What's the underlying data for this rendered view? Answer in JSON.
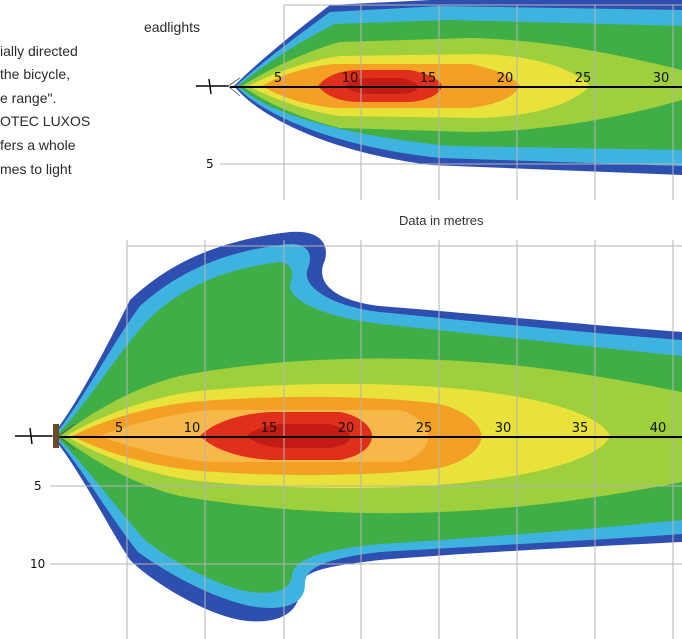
{
  "intro_lines": [
    "eadlights",
    "ially directed",
    "the bicycle,",
    "e range\".",
    "OTEC LUXOS",
    "fers a whole",
    "mes to light"
  ],
  "caption": "Data in metres",
  "top_beam": {
    "axis_ticks": [
      "5",
      "10",
      "15",
      "20",
      "25",
      "30"
    ],
    "side_ticks": [
      "5"
    ]
  },
  "bottom_beam": {
    "axis_ticks": [
      "5",
      "10",
      "15",
      "20",
      "25",
      "30",
      "35",
      "40"
    ],
    "side_ticks": [
      "5",
      "10"
    ]
  },
  "colors": {
    "grid": "#b4b4b4",
    "beam_outer": "#2f4fb0",
    "beam_cyan": "#3fb3e0",
    "beam_green": "#3fae46",
    "beam_yellow": "#e8e23a",
    "beam_orange": "#f4a024",
    "beam_red": "#e0301c"
  }
}
